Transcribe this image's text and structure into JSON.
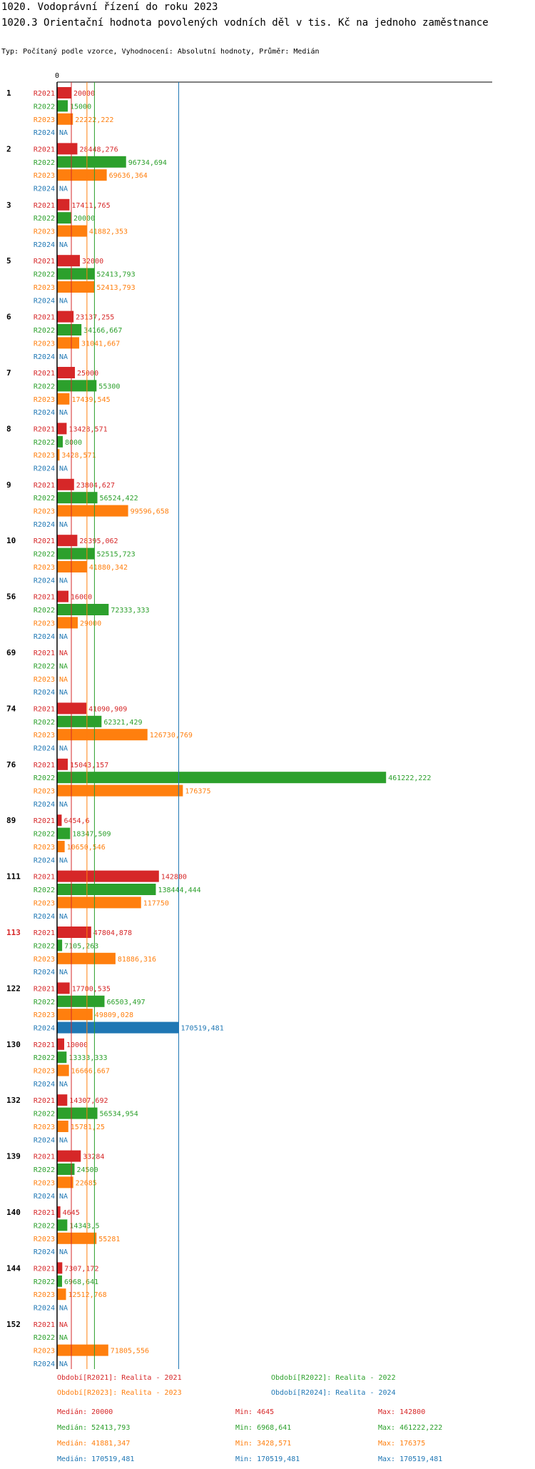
{
  "header": {
    "title": "1020. Vodoprávní řízení do roku 2023",
    "subtitle": "1020.3 Orientační hodnota povolených vodních děl v tis. Kč na jednoho zaměstnance",
    "type_line": "Typ: Počítaný podle vzorce, Vyhodnocení: Absolutní hodnoty, Průměr: Medián"
  },
  "colors": {
    "R2021": "#d62728",
    "R2022": "#2ca02c",
    "R2023": "#ff7f0e",
    "R2024": "#1f77b4",
    "highlight_category": "#d62728"
  },
  "chart_data": {
    "type": "bar",
    "orientation": "horizontal",
    "title": "1020.3 Orientační hodnota povolených vodních děl v tis. Kč na jednoho zaměstnance",
    "xlim": [
      0,
      610000
    ],
    "x_tick_label": "0",
    "series_names": [
      "R2021",
      "R2022",
      "R2023",
      "R2024"
    ],
    "highlight_category": "113",
    "categories": [
      {
        "name": "1",
        "values": [
          20000,
          15000,
          22222.222,
          null
        ],
        "labels": [
          "20000",
          "15000",
          "22222,222",
          "NA"
        ]
      },
      {
        "name": "2",
        "values": [
          28448.276,
          96734.694,
          69636.364,
          null
        ],
        "labels": [
          "28448,276",
          "96734,694",
          "69636,364",
          "NA"
        ]
      },
      {
        "name": "3",
        "values": [
          17411.765,
          20000,
          41882.353,
          null
        ],
        "labels": [
          "17411,765",
          "20000",
          "41882,353",
          "NA"
        ]
      },
      {
        "name": "5",
        "values": [
          32000,
          52413.793,
          52413.793,
          null
        ],
        "labels": [
          "32000",
          "52413,793",
          "52413,793",
          "NA"
        ]
      },
      {
        "name": "6",
        "values": [
          23137.255,
          34166.667,
          31041.667,
          null
        ],
        "labels": [
          "23137,255",
          "34166,667",
          "31041,667",
          "NA"
        ]
      },
      {
        "name": "7",
        "values": [
          25000,
          55300,
          17439.545,
          null
        ],
        "labels": [
          "25000",
          "55300",
          "17439,545",
          "NA"
        ]
      },
      {
        "name": "8",
        "values": [
          13428.571,
          8000,
          3428.571,
          null
        ],
        "labels": [
          "13428,571",
          "8000",
          "3428,571",
          "NA"
        ]
      },
      {
        "name": "9",
        "values": [
          23804.627,
          56524.422,
          99596.658,
          null
        ],
        "labels": [
          "23804,627",
          "56524,422",
          "99596,658",
          "NA"
        ]
      },
      {
        "name": "10",
        "values": [
          28395.062,
          52515.723,
          41880.342,
          null
        ],
        "labels": [
          "28395,062",
          "52515,723",
          "41880,342",
          "NA"
        ]
      },
      {
        "name": "56",
        "values": [
          16000,
          72333.333,
          29000,
          null
        ],
        "labels": [
          "16000",
          "72333,333",
          "29000",
          "NA"
        ]
      },
      {
        "name": "69",
        "values": [
          null,
          null,
          null,
          null
        ],
        "labels": [
          "NA",
          "NA",
          "NA",
          "NA"
        ]
      },
      {
        "name": "74",
        "values": [
          41090.909,
          62321.429,
          126730.769,
          null
        ],
        "labels": [
          "41090,909",
          "62321,429",
          "126730,769",
          "NA"
        ]
      },
      {
        "name": "76",
        "values": [
          15043.157,
          461222.222,
          176375,
          null
        ],
        "labels": [
          "15043,157",
          "461222,222",
          "176375",
          "NA"
        ]
      },
      {
        "name": "89",
        "values": [
          6454.6,
          18347.509,
          10650.546,
          null
        ],
        "labels": [
          "6454,6",
          "18347,509",
          "10650,546",
          "NA"
        ]
      },
      {
        "name": "111",
        "values": [
          142800,
          138444.444,
          117750,
          null
        ],
        "labels": [
          "142800",
          "138444,444",
          "117750",
          "NA"
        ]
      },
      {
        "name": "113",
        "values": [
          47804.878,
          7105.263,
          81886.316,
          null
        ],
        "labels": [
          "47804,878",
          "7105,263",
          "81886,316",
          "NA"
        ]
      },
      {
        "name": "122",
        "values": [
          17700.535,
          66503.497,
          49809.028,
          170519.481
        ],
        "labels": [
          "17700,535",
          "66503,497",
          "49809,028",
          "170519,481"
        ]
      },
      {
        "name": "130",
        "values": [
          10000,
          13333.333,
          16666.667,
          null
        ],
        "labels": [
          "10000",
          "13333,333",
          "16666,667",
          "NA"
        ]
      },
      {
        "name": "132",
        "values": [
          14307.692,
          56534.954,
          15781.25,
          null
        ],
        "labels": [
          "14307,692",
          "56534,954",
          "15781,25",
          "NA"
        ]
      },
      {
        "name": "139",
        "values": [
          33284,
          24500,
          22685,
          null
        ],
        "labels": [
          "33284",
          "24500",
          "22685",
          "NA"
        ]
      },
      {
        "name": "140",
        "values": [
          4645,
          14343.5,
          55281,
          null
        ],
        "labels": [
          "4645",
          "14343,5",
          "55281",
          "NA"
        ]
      },
      {
        "name": "144",
        "values": [
          7307.172,
          6968.641,
          12512.768,
          null
        ],
        "labels": [
          "7307,172",
          "6968,641",
          "12512,768",
          "NA"
        ]
      },
      {
        "name": "152",
        "values": [
          null,
          null,
          71805.556,
          null
        ],
        "labels": [
          "NA",
          "NA",
          "71805,556",
          "NA"
        ]
      }
    ],
    "median_lines": [
      {
        "series": "R2021",
        "value": 20000
      },
      {
        "series": "R2022",
        "value": 52413.793
      },
      {
        "series": "R2023",
        "value": 41881.347
      },
      {
        "series": "R2024",
        "value": 170519.481
      }
    ]
  },
  "legend": {
    "periods": [
      {
        "series": "R2021",
        "text": "Období[R2021]: Realita - 2021"
      },
      {
        "series": "R2022",
        "text": "Období[R2022]: Realita - 2022"
      },
      {
        "series": "R2023",
        "text": "Období[R2023]: Realita - 2023"
      },
      {
        "series": "R2024",
        "text": "Období[R2024]: Realita - 2024"
      }
    ],
    "stats": [
      {
        "series": "R2021",
        "median": "Medián: 20000",
        "min": "Min: 4645",
        "max": "Max: 142800"
      },
      {
        "series": "R2022",
        "median": "Medián: 52413,793",
        "min": "Min: 6968,641",
        "max": "Max: 461222,222"
      },
      {
        "series": "R2023",
        "median": "Medián: 41881,347",
        "min": "Min: 3428,571",
        "max": "Max: 176375"
      },
      {
        "series": "R2024",
        "median": "Medián: 170519,481",
        "min": "Min: 170519,481",
        "max": "Max: 170519,481"
      }
    ]
  }
}
